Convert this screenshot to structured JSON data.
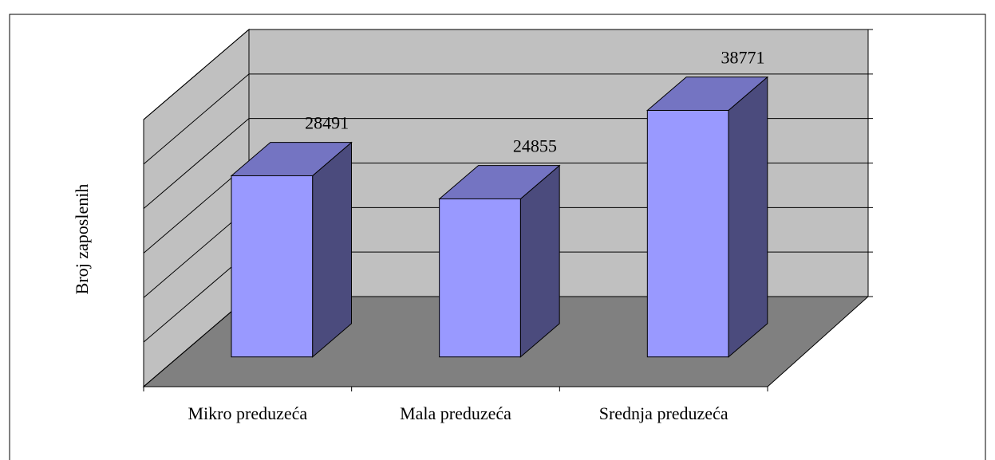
{
  "chart_data": {
    "type": "bar3d",
    "ylabel": "Broj zaposlenih",
    "categories": [
      "Mikro preduzeća",
      "Mala preduzeća",
      "Srednja preduzeća"
    ],
    "values": [
      28491,
      24855,
      38771
    ],
    "color": "#9999ff",
    "ylim": [
      0,
      42000
    ],
    "yticks": [
      0,
      7000,
      14000,
      21000,
      28000,
      35000,
      42000
    ],
    "grid": true
  }
}
